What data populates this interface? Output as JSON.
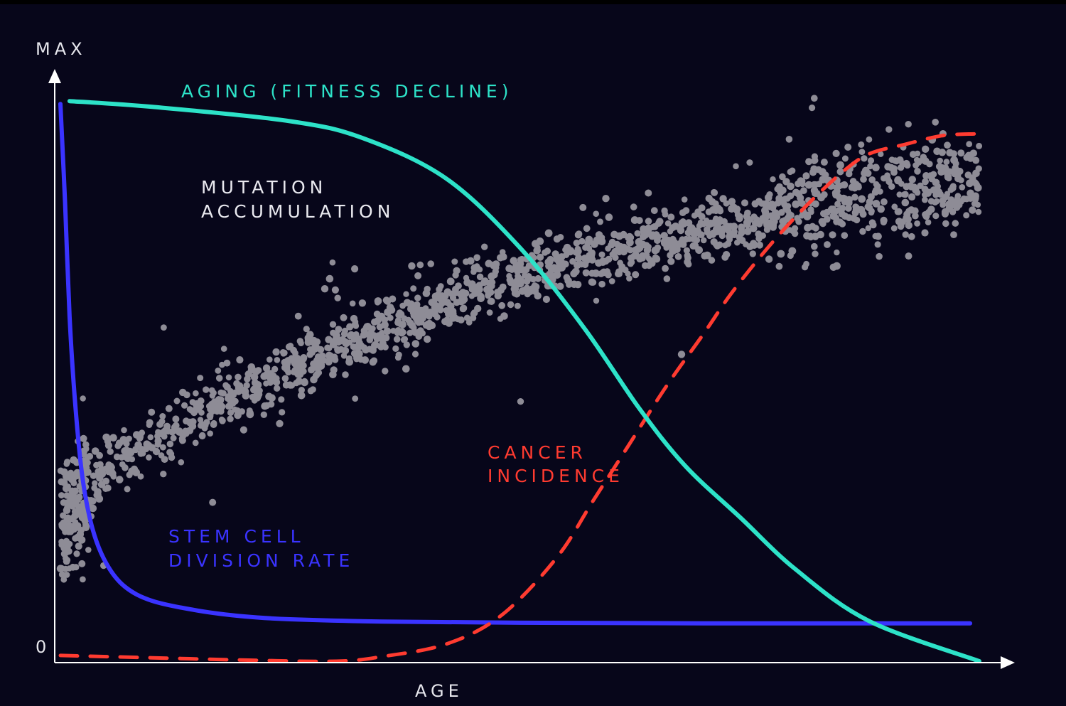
{
  "chart_data": {
    "type": "line",
    "title": "",
    "xlabel": "AGE",
    "ylabel": "",
    "y_tick_labels": {
      "max": "MAX",
      "zero": "0"
    },
    "x_range": [
      0,
      100
    ],
    "y_range": [
      0,
      100
    ],
    "grid": false,
    "legend": "none",
    "series": [
      {
        "name": "AGING (FITNESS DECLINE)",
        "style": "solid",
        "color": "#2de2c8",
        "points": [
          [
            1,
            97.5
          ],
          [
            10,
            96.5
          ],
          [
            25,
            94
          ],
          [
            33,
            91
          ],
          [
            42,
            84
          ],
          [
            50,
            72
          ],
          [
            57,
            58
          ],
          [
            63,
            44
          ],
          [
            68,
            34
          ],
          [
            74,
            25
          ],
          [
            80,
            16
          ],
          [
            88,
            7
          ],
          [
            100,
            0
          ]
        ]
      },
      {
        "name": "STEM CELL DIVISION RATE",
        "style": "solid",
        "color": "#3a33ff",
        "points": [
          [
            0,
            97
          ],
          [
            0.5,
            80
          ],
          [
            1,
            60
          ],
          [
            1.6,
            45
          ],
          [
            2.4,
            32
          ],
          [
            3.5,
            23
          ],
          [
            5,
            17
          ],
          [
            7,
            13
          ],
          [
            10,
            10.5
          ],
          [
            15,
            8.8
          ],
          [
            20,
            7.8
          ],
          [
            25,
            7.3
          ],
          [
            35,
            6.9
          ],
          [
            50,
            6.7
          ],
          [
            70,
            6.6
          ],
          [
            99,
            6.6
          ]
        ]
      },
      {
        "name": "CANCER INCIDENCE",
        "style": "dashed",
        "color": "#ff3b30",
        "points": [
          [
            0,
            1
          ],
          [
            10,
            0.6
          ],
          [
            20,
            0.2
          ],
          [
            30,
            0
          ],
          [
            35,
            0.8
          ],
          [
            42,
            3
          ],
          [
            48,
            8
          ],
          [
            54,
            18
          ],
          [
            58,
            28
          ],
          [
            62,
            38
          ],
          [
            66,
            48
          ],
          [
            70,
            57
          ],
          [
            73,
            64
          ],
          [
            77,
            72
          ],
          [
            81,
            79
          ],
          [
            85,
            85
          ],
          [
            88,
            88.3
          ],
          [
            92,
            90
          ],
          [
            96,
            91.5
          ],
          [
            99.5,
            91.8
          ]
        ]
      },
      {
        "name": "MUTATION ACCUMULATION",
        "style": "scatter",
        "color": "#8e8c96",
        "trend": [
          [
            0,
            22
          ],
          [
            5,
            33
          ],
          [
            15,
            43
          ],
          [
            25,
            51
          ],
          [
            35,
            58
          ],
          [
            45,
            64
          ],
          [
            55,
            69
          ],
          [
            65,
            73
          ],
          [
            75,
            77
          ],
          [
            85,
            80
          ],
          [
            95,
            83
          ],
          [
            100,
            84
          ]
        ]
      }
    ],
    "annotations": [
      {
        "text": "AGING (FITNESS DECLINE)",
        "series": "AGING (FITNESS DECLINE)"
      },
      {
        "text": "MUTATION\nACCUMULATION",
        "series": "MUTATION ACCUMULATION"
      },
      {
        "text": "CANCER\nINCIDENCE",
        "series": "CANCER INCIDENCE"
      },
      {
        "text": "STEM CELL\nDIVISION RATE",
        "series": "STEM CELL DIVISION RATE"
      }
    ],
    "colors": {
      "background": "#07061a",
      "axis": "#ffffff",
      "axis_text": "#e6e6ec",
      "mutation_label": "#e9e9ef"
    }
  }
}
